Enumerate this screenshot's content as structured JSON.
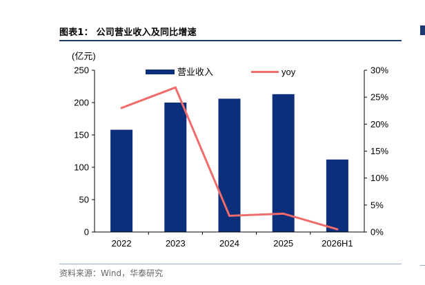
{
  "figure": {
    "title": "图表1： 公司营业收入及同比增速",
    "source": "资料来源：Wind，华泰研究"
  },
  "chart_data": {
    "type": "bar",
    "categories": [
      "2022",
      "2023",
      "2024",
      "2025",
      "2026H1"
    ],
    "series": [
      {
        "name": "营业收入",
        "type": "bar",
        "axis": "left",
        "color": "#0b2f7a",
        "values": [
          158,
          200,
          206,
          213,
          112
        ]
      },
      {
        "name": "yoy",
        "type": "line",
        "axis": "right",
        "color": "#f26b6b",
        "values": [
          0.23,
          0.268,
          0.03,
          0.034,
          0.005
        ]
      }
    ],
    "left_axis": {
      "unit_label": "(亿元)",
      "ylim": [
        0,
        250
      ],
      "ticks": [
        {
          "value": 0,
          "label": "0"
        },
        {
          "value": 50,
          "label": "50"
        },
        {
          "value": 100,
          "label": "100"
        },
        {
          "value": 150,
          "label": "150"
        },
        {
          "value": 200,
          "label": "200"
        },
        {
          "value": 250,
          "label": "250"
        }
      ]
    },
    "right_axis": {
      "ylim": [
        0,
        0.3
      ],
      "ticks": [
        {
          "value": 0,
          "label": "0%"
        },
        {
          "value": 0.05,
          "label": "5%"
        },
        {
          "value": 0.1,
          "label": "10%"
        },
        {
          "value": 0.15,
          "label": "15%"
        },
        {
          "value": 0.2,
          "label": "20%"
        },
        {
          "value": 0.25,
          "label": "25%"
        },
        {
          "value": 0.3,
          "label": "30%"
        }
      ]
    },
    "grid": false,
    "legend_position": "top"
  }
}
